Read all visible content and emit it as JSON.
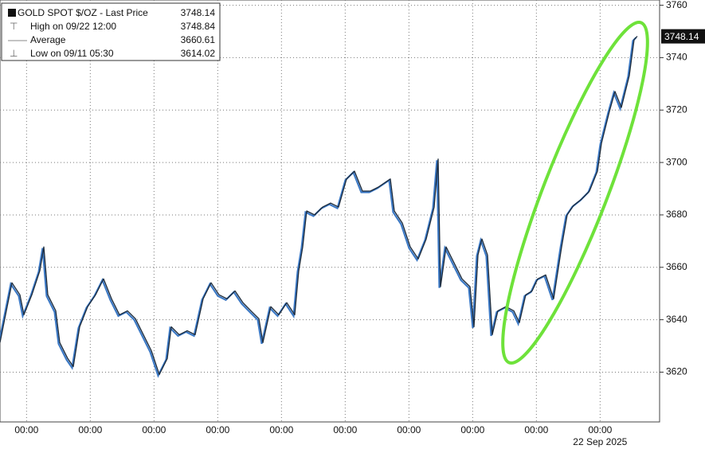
{
  "chart_data": {
    "type": "line",
    "x": [
      0,
      3,
      4.5,
      7.5,
      9,
      12,
      15,
      16.5,
      18,
      21,
      22.5,
      25.5,
      27.6,
      30,
      33,
      36,
      39,
      42,
      45,
      48,
      51,
      54,
      57,
      60,
      63,
      64.5,
      67.5,
      70.5,
      73.5,
      76.5,
      79.5,
      82.5,
      85.5,
      88.5,
      91.5,
      94.5,
      97.5,
      99,
      102,
      105,
      108,
      111,
      112.5,
      114,
      115.5,
      118.5,
      121.5,
      124.5,
      127.5,
      130.5,
      133.5,
      136.5,
      139.5,
      142.5,
      147,
      148.5,
      151.5,
      154.5,
      157.5,
      160.5,
      163.5,
      165,
      165.9,
      168,
      171,
      174,
      177,
      178.5,
      180,
      181.5,
      183.6,
      185.4,
      187.5,
      190.5,
      193.5,
      195.6,
      198,
      200.4,
      202.5,
      205.5,
      208.5,
      211.5,
      213.6,
      216,
      219,
      222,
      225,
      226.5,
      228,
      229.5,
      231.6,
      234,
      237,
      238.8,
      240
    ],
    "series": [
      {
        "name": "GOLD SPOT $/OZ",
        "color": "#1c2a3a",
        "values": [
          3631.3,
          3646.5,
          3654.1,
          3649.5,
          3641.9,
          3649.5,
          3658.7,
          3667.8,
          3649.5,
          3643.4,
          3631.3,
          3625.2,
          3622.1,
          3637.3,
          3645.0,
          3649.5,
          3655.6,
          3648.0,
          3641.9,
          3643.4,
          3640.4,
          3634.3,
          3628.2,
          3619.1,
          3625.2,
          3637.3,
          3634.3,
          3635.8,
          3634.3,
          3648.0,
          3654.1,
          3649.5,
          3648.0,
          3651.0,
          3646.5,
          3643.4,
          3640.4,
          3631.3,
          3645.0,
          3641.9,
          3646.5,
          3641.9,
          3658.7,
          3667.8,
          3681.5,
          3680.0,
          3683.0,
          3684.5,
          3683.0,
          3693.7,
          3696.7,
          3689.1,
          3689.1,
          3690.6,
          3693.7,
          3681.5,
          3676.9,
          3667.8,
          3663.2,
          3670.8,
          3683.0,
          3701.3,
          3652.6,
          3667.8,
          3661.7,
          3655.6,
          3652.6,
          3637.3,
          3664.7,
          3670.8,
          3664.7,
          3634.3,
          3643.4,
          3645.0,
          3643.4,
          3638.9,
          3649.5,
          3651.0,
          3655.6,
          3657.1,
          3648.0,
          3667.8,
          3680.0,
          3683.6,
          3686.0,
          3689.1,
          3696.7,
          3707.3,
          3713.4,
          3719.5,
          3727.1,
          3721.0,
          3733.2,
          3746.9,
          3748.14
        ]
      }
    ],
    "xlim": [
      0,
      248.4
    ],
    "xticks": [
      {
        "value": 10,
        "label": "00:00"
      },
      {
        "value": 34,
        "label": "00:00"
      },
      {
        "value": 58,
        "label": "00:00"
      },
      {
        "value": 82,
        "label": "00:00"
      },
      {
        "value": 106,
        "label": "00:00"
      },
      {
        "value": 130,
        "label": "00:00"
      },
      {
        "value": 154,
        "label": "00:00"
      },
      {
        "value": 178,
        "label": "00:00"
      },
      {
        "value": 202,
        "label": "00:00"
      },
      {
        "value": 226,
        "label": "00:00"
      }
    ],
    "x_date_label": "22 Sep 2025",
    "ylim": [
      3601,
      3762
    ],
    "yticks": [
      3620,
      3640,
      3660,
      3680,
      3700,
      3720,
      3740,
      3760
    ],
    "grid": true,
    "legend_entries": [
      {
        "label": "GOLD SPOT $/OZ - Last Price",
        "value": 3748.14
      },
      {
        "label": "High on 09/22 12:00",
        "value": 3748.84
      },
      {
        "label": "Average",
        "value": 3660.61
      },
      {
        "label": "Low on 09/11 05:30",
        "value": 3614.02
      }
    ]
  }
}
